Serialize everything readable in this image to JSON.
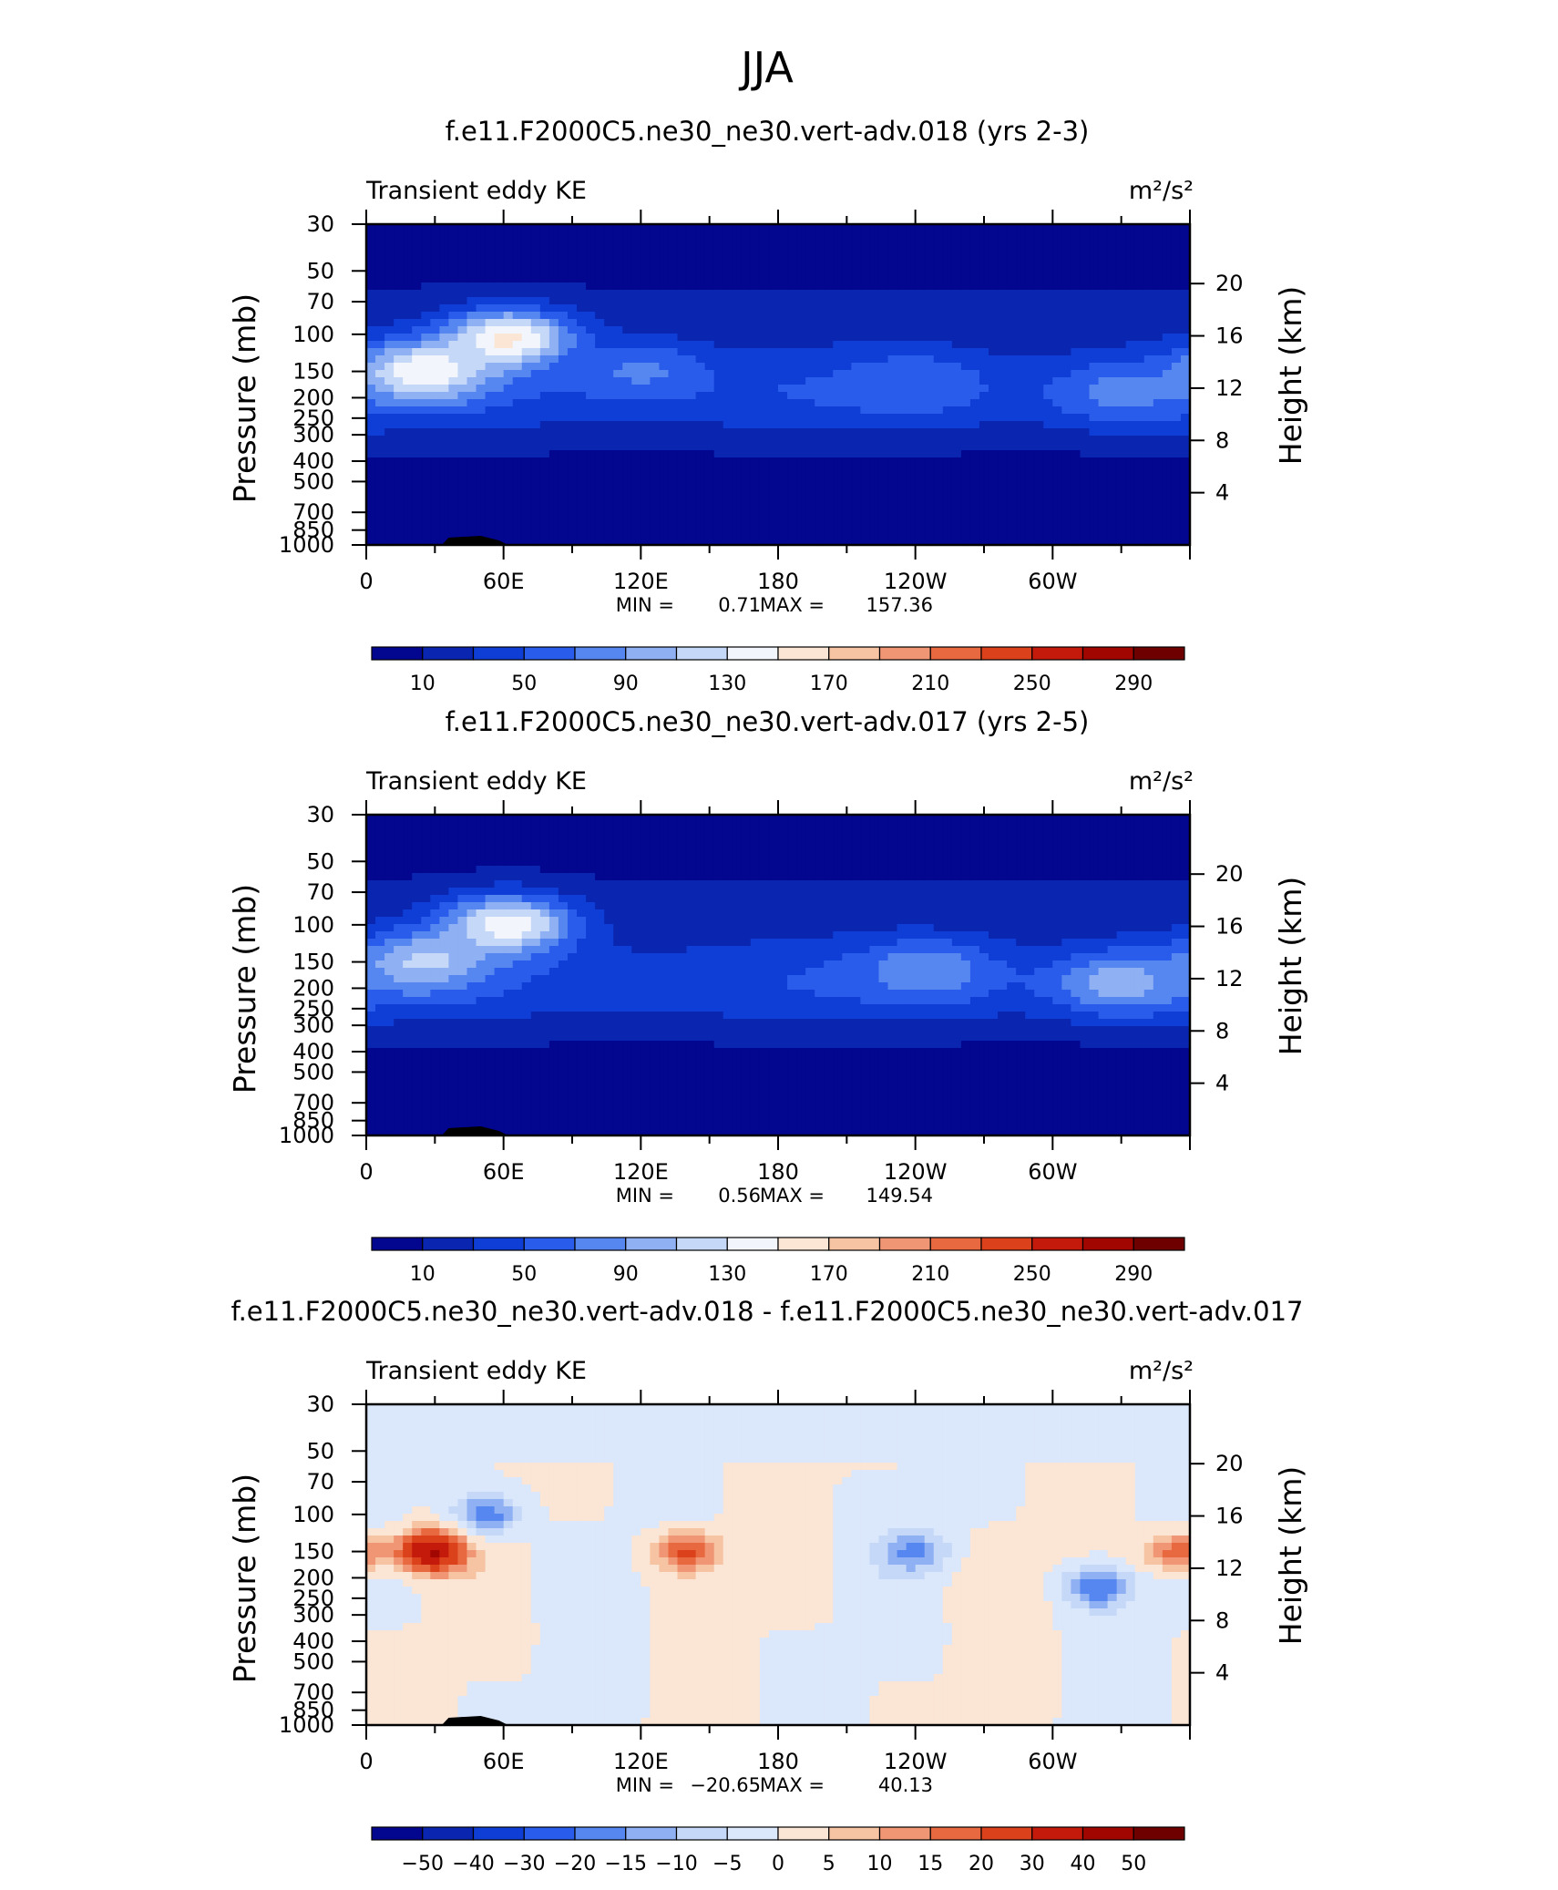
{
  "figure": {
    "title": "JJA"
  },
  "colors": {
    "abs_scale": [
      "#03068f",
      "#0a26b0",
      "#0f3ed6",
      "#2a5ceb",
      "#5686f0",
      "#8fb0f3",
      "#c5d8f8",
      "#f2f6fc",
      "#fbe5d4",
      "#f6c3a3",
      "#f09674",
      "#e8693f",
      "#db411b",
      "#c41a0b",
      "#a10700",
      "#6e0000"
    ],
    "diff_scale": [
      "#03068f",
      "#0a26b0",
      "#0f3ed6",
      "#2a5ceb",
      "#5686f0",
      "#8fb0f3",
      "#c5d8f8",
      "#dbe7fa",
      "#fbe5d4",
      "#f6c3a3",
      "#f09674",
      "#e8693f",
      "#db411b",
      "#c41a0b",
      "#a10700",
      "#6e0000"
    ]
  },
  "chart_data": [
    {
      "type": "heatmap",
      "title": "f.e11.F2000C5.ne30_ne30.vert-adv.018 (yrs 2-3)",
      "left_label": "Transient eddy KE",
      "units": "m²/s²",
      "ylabel": "Pressure (mb)",
      "ylabel_right": "Height (km)",
      "x_ticks": [
        "0",
        "60E",
        "120E",
        "180",
        "120W",
        "60W"
      ],
      "y_ticks": [
        "30",
        "50",
        "70",
        "100",
        "150",
        "200",
        "250",
        "300",
        "400",
        "500",
        "700",
        "850",
        "1000"
      ],
      "y_ticks_right": [
        "20",
        "16",
        "12",
        "8",
        "4"
      ],
      "stats": {
        "min_label": "MIN =",
        "min": "0.71",
        "max_label": "MAX =",
        "max": "157.36"
      },
      "colorbar_labels": [
        "10",
        "50",
        "90",
        "130",
        "170",
        "210",
        "250",
        "290"
      ],
      "features": [
        {
          "lon": 25,
          "p": 150,
          "value": 150
        },
        {
          "lon": 62,
          "p": 105,
          "value": 157
        },
        {
          "lon": 120,
          "p": 150,
          "value": 75
        },
        {
          "lon": 240,
          "p": 170,
          "value": 70
        },
        {
          "lon": 330,
          "p": 190,
          "value": 80
        }
      ]
    },
    {
      "type": "heatmap",
      "title": "f.e11.F2000C5.ne30_ne30.vert-adv.017 (yrs 2-5)",
      "left_label": "Transient eddy KE",
      "units": "m²/s²",
      "ylabel": "Pressure (mb)",
      "ylabel_right": "Height (km)",
      "x_ticks": [
        "0",
        "60E",
        "120E",
        "180",
        "120W",
        "60W"
      ],
      "y_ticks": [
        "30",
        "50",
        "70",
        "100",
        "150",
        "200",
        "250",
        "300",
        "400",
        "500",
        "700",
        "850",
        "1000"
      ],
      "y_ticks_right": [
        "20",
        "16",
        "12",
        "8",
        "4"
      ],
      "stats": {
        "min_label": "MIN =",
        "min": "0.56",
        "max_label": "MAX =",
        "max": "149.54"
      },
      "colorbar_labels": [
        "10",
        "50",
        "90",
        "130",
        "170",
        "210",
        "250",
        "290"
      ],
      "features": [
        {
          "lon": 25,
          "p": 150,
          "value": 115
        },
        {
          "lon": 62,
          "p": 100,
          "value": 149
        },
        {
          "lon": 245,
          "p": 165,
          "value": 90
        },
        {
          "lon": 330,
          "p": 190,
          "value": 105
        }
      ]
    },
    {
      "type": "heatmap",
      "title": "f.e11.F2000C5.ne30_ne30.vert-adv.018 - f.e11.F2000C5.ne30_ne30.vert-adv.017",
      "left_label": "Transient eddy KE",
      "units": "m²/s²",
      "ylabel": "Pressure (mb)",
      "ylabel_right": "Height (km)",
      "x_ticks": [
        "0",
        "60E",
        "120E",
        "180",
        "120W",
        "60W"
      ],
      "y_ticks": [
        "30",
        "50",
        "70",
        "100",
        "150",
        "200",
        "250",
        "300",
        "400",
        "500",
        "700",
        "850",
        "1000"
      ],
      "y_ticks_right": [
        "20",
        "16",
        "12",
        "8",
        "4"
      ],
      "stats": {
        "min_label": "MIN =",
        "min": "−20.65",
        "max_label": "MAX =",
        "max": "40.13"
      },
      "colorbar_labels": [
        "−50",
        "−40",
        "−30",
        "−20",
        "−15",
        "−10",
        "−5",
        "0",
        "5",
        "10",
        "15",
        "20",
        "30",
        "40",
        "50"
      ],
      "features": [
        {
          "lon": 28,
          "p": 150,
          "value": 40
        },
        {
          "lon": 52,
          "p": 100,
          "value": -20
        },
        {
          "lon": 140,
          "p": 150,
          "value": 22
        },
        {
          "lon": 240,
          "p": 150,
          "value": -15
        },
        {
          "lon": 320,
          "p": 220,
          "value": -20
        },
        {
          "lon": 355,
          "p": 150,
          "value": 20
        }
      ]
    }
  ]
}
